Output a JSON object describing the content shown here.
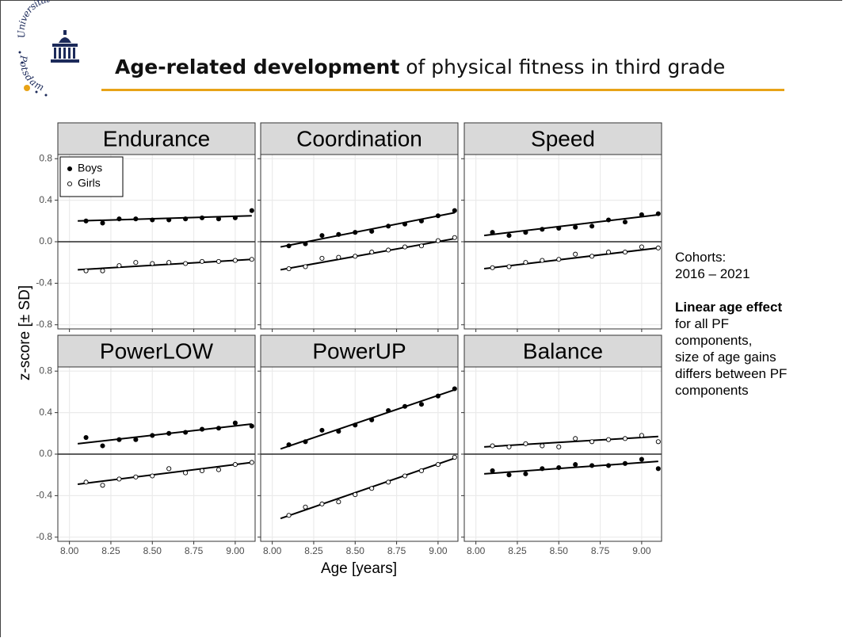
{
  "logo": {
    "top": "Universität",
    "bottom": "Potsdam"
  },
  "header": {
    "title_bold": "Age-related development",
    "title_rest": " of physical fitness in third grade"
  },
  "shared_axes": {
    "ylabel": "z-score [± SD]",
    "xlabel": "Age [years]"
  },
  "notes": {
    "cohorts_label": "Cohorts:",
    "cohorts": "2016 – 2021",
    "effect_bold": "Linear age effect",
    "effect_lines": [
      "for all PF",
      "components,",
      "size of age gains",
      "differs between PF",
      "components"
    ]
  },
  "chart_data": [
    {
      "type": "scatter",
      "title": "Endurance",
      "legend": "top-left",
      "reference_line": 0,
      "xlim": [
        7.93,
        9.12
      ],
      "ylim": [
        -0.84,
        0.84
      ],
      "xticks": [
        {
          "value": 8,
          "label": "8.00"
        },
        8.25,
        {
          "value": 8.5,
          "label": "8.50"
        },
        8.75,
        {
          "value": 9,
          "label": "9.00"
        }
      ],
      "yticks": [
        -0.8,
        -0.4,
        {
          "value": 0,
          "label": "0.0"
        },
        0.4,
        0.8
      ],
      "x": [
        8.1,
        8.2,
        8.3,
        8.4,
        8.5,
        8.6,
        8.7,
        8.8,
        8.9,
        9.0,
        9.1
      ],
      "series": [
        {
          "name": "Boys",
          "color": "#000000",
          "marker": "filled",
          "values": [
            0.2,
            0.18,
            0.22,
            0.22,
            0.21,
            0.21,
            0.22,
            0.23,
            0.22,
            0.23,
            0.3
          ],
          "fit": {
            "x": [
              8.05,
              9.1
            ],
            "values": [
              0.2,
              0.25
            ]
          }
        },
        {
          "name": "Girls",
          "color": "#000000",
          "marker": "open",
          "values": [
            -0.28,
            -0.28,
            -0.23,
            -0.2,
            -0.21,
            -0.2,
            -0.21,
            -0.19,
            -0.19,
            -0.18,
            -0.17
          ],
          "fit": {
            "x": [
              8.05,
              9.1
            ],
            "values": [
              -0.27,
              -0.17
            ]
          }
        }
      ]
    },
    {
      "type": "scatter",
      "title": "Coordination",
      "reference_line": 0,
      "xlim": [
        7.93,
        9.12
      ],
      "ylim": [
        -0.84,
        0.84
      ],
      "xticks": [
        {
          "value": 8,
          "label": "8.00"
        },
        8.25,
        {
          "value": 8.5,
          "label": "8.50"
        },
        8.75,
        {
          "value": 9,
          "label": "9.00"
        }
      ],
      "yticks": [
        -0.8,
        -0.4,
        {
          "value": 0,
          "label": "0.0"
        },
        0.4,
        0.8
      ],
      "x": [
        8.1,
        8.2,
        8.3,
        8.4,
        8.5,
        8.6,
        8.7,
        8.8,
        8.9,
        9.0,
        9.1
      ],
      "series": [
        {
          "name": "Boys",
          "color": "#000000",
          "marker": "filled",
          "values": [
            -0.04,
            -0.02,
            0.06,
            0.07,
            0.09,
            0.1,
            0.15,
            0.17,
            0.2,
            0.25,
            0.3
          ],
          "fit": {
            "x": [
              8.05,
              9.1
            ],
            "values": [
              -0.05,
              0.28
            ]
          }
        },
        {
          "name": "Girls",
          "color": "#000000",
          "marker": "open",
          "values": [
            -0.26,
            -0.24,
            -0.16,
            -0.15,
            -0.14,
            -0.1,
            -0.08,
            -0.05,
            -0.04,
            0.01,
            0.04
          ],
          "fit": {
            "x": [
              8.05,
              9.1
            ],
            "values": [
              -0.27,
              0.03
            ]
          }
        }
      ]
    },
    {
      "type": "scatter",
      "title": "Speed",
      "reference_line": 0,
      "xlim": [
        7.93,
        9.12
      ],
      "ylim": [
        -0.84,
        0.84
      ],
      "xticks": [
        {
          "value": 8,
          "label": "8.00"
        },
        8.25,
        {
          "value": 8.5,
          "label": "8.50"
        },
        8.75,
        {
          "value": 9,
          "label": "9.00"
        }
      ],
      "yticks": [
        -0.8,
        -0.4,
        {
          "value": 0,
          "label": "0.0"
        },
        0.4,
        0.8
      ],
      "x": [
        8.1,
        8.2,
        8.3,
        8.4,
        8.5,
        8.6,
        8.7,
        8.8,
        8.9,
        9.0,
        9.1
      ],
      "series": [
        {
          "name": "Boys",
          "color": "#000000",
          "marker": "filled",
          "values": [
            0.09,
            0.06,
            0.09,
            0.12,
            0.13,
            0.14,
            0.15,
            0.21,
            0.19,
            0.26,
            0.27
          ],
          "fit": {
            "x": [
              8.05,
              9.1
            ],
            "values": [
              0.06,
              0.26
            ]
          }
        },
        {
          "name": "Girls",
          "color": "#000000",
          "marker": "open",
          "values": [
            -0.25,
            -0.24,
            -0.2,
            -0.18,
            -0.17,
            -0.12,
            -0.14,
            -0.1,
            -0.1,
            -0.05,
            -0.06
          ],
          "fit": {
            "x": [
              8.05,
              9.1
            ],
            "values": [
              -0.26,
              -0.06
            ]
          }
        }
      ]
    },
    {
      "type": "scatter",
      "title": "PowerLOW",
      "reference_line": 0,
      "xlim": [
        7.93,
        9.12
      ],
      "ylim": [
        -0.84,
        0.84
      ],
      "xticks": [
        {
          "value": 8,
          "label": "8.00"
        },
        8.25,
        {
          "value": 8.5,
          "label": "8.50"
        },
        8.75,
        {
          "value": 9,
          "label": "9.00"
        }
      ],
      "yticks": [
        -0.8,
        -0.4,
        {
          "value": 0,
          "label": "0.0"
        },
        0.4,
        0.8
      ],
      "x": [
        8.1,
        8.2,
        8.3,
        8.4,
        8.5,
        8.6,
        8.7,
        8.8,
        8.9,
        9.0,
        9.1
      ],
      "series": [
        {
          "name": "Boys",
          "color": "#000000",
          "marker": "filled",
          "values": [
            0.16,
            0.08,
            0.14,
            0.14,
            0.18,
            0.2,
            0.21,
            0.24,
            0.25,
            0.3,
            0.27
          ],
          "fit": {
            "x": [
              8.05,
              9.1
            ],
            "values": [
              0.1,
              0.29
            ]
          }
        },
        {
          "name": "Girls",
          "color": "#000000",
          "marker": "open",
          "values": [
            -0.27,
            -0.3,
            -0.24,
            -0.22,
            -0.21,
            -0.14,
            -0.18,
            -0.16,
            -0.15,
            -0.1,
            -0.08
          ],
          "fit": {
            "x": [
              8.05,
              9.1
            ],
            "values": [
              -0.29,
              -0.08
            ]
          }
        }
      ]
    },
    {
      "type": "scatter",
      "title": "PowerUP",
      "reference_line": 0,
      "xlim": [
        7.93,
        9.12
      ],
      "ylim": [
        -0.84,
        0.84
      ],
      "xticks": [
        {
          "value": 8,
          "label": "8.00"
        },
        8.25,
        {
          "value": 8.5,
          "label": "8.50"
        },
        8.75,
        {
          "value": 9,
          "label": "9.00"
        }
      ],
      "yticks": [
        -0.8,
        -0.4,
        {
          "value": 0,
          "label": "0.0"
        },
        0.4,
        0.8
      ],
      "x": [
        8.1,
        8.2,
        8.3,
        8.4,
        8.5,
        8.6,
        8.7,
        8.8,
        8.9,
        9.0,
        9.1
      ],
      "series": [
        {
          "name": "Boys",
          "color": "#000000",
          "marker": "filled",
          "values": [
            0.09,
            0.12,
            0.23,
            0.22,
            0.28,
            0.33,
            0.42,
            0.46,
            0.48,
            0.56,
            0.63
          ],
          "fit": {
            "x": [
              8.05,
              9.1
            ],
            "values": [
              0.05,
              0.62
            ]
          }
        },
        {
          "name": "Girls",
          "color": "#000000",
          "marker": "open",
          "values": [
            -0.59,
            -0.51,
            -0.48,
            -0.46,
            -0.39,
            -0.33,
            -0.27,
            -0.21,
            -0.16,
            -0.1,
            -0.03
          ],
          "fit": {
            "x": [
              8.05,
              9.1
            ],
            "values": [
              -0.62,
              -0.04
            ]
          }
        }
      ]
    },
    {
      "type": "scatter",
      "title": "Balance",
      "reference_line": 0,
      "xlim": [
        7.93,
        9.12
      ],
      "ylim": [
        -0.84,
        0.84
      ],
      "xticks": [
        {
          "value": 8,
          "label": "8.00"
        },
        8.25,
        {
          "value": 8.5,
          "label": "8.50"
        },
        8.75,
        {
          "value": 9,
          "label": "9.00"
        }
      ],
      "yticks": [
        -0.8,
        -0.4,
        {
          "value": 0,
          "label": "0.0"
        },
        0.4,
        0.8
      ],
      "x": [
        8.1,
        8.2,
        8.3,
        8.4,
        8.5,
        8.6,
        8.7,
        8.8,
        8.9,
        9.0,
        9.1
      ],
      "series": [
        {
          "name": "Boys",
          "color": "#000000",
          "marker": "filled",
          "values": [
            -0.16,
            -0.2,
            -0.19,
            -0.14,
            -0.13,
            -0.1,
            -0.11,
            -0.11,
            -0.09,
            -0.05,
            -0.14
          ],
          "fit": {
            "x": [
              8.05,
              9.1
            ],
            "values": [
              -0.19,
              -0.07
            ]
          }
        },
        {
          "name": "Girls",
          "color": "#000000",
          "marker": "open",
          "values": [
            0.08,
            0.07,
            0.1,
            0.08,
            0.07,
            0.15,
            0.12,
            0.14,
            0.15,
            0.18,
            0.12
          ],
          "fit": {
            "x": [
              8.05,
              9.1
            ],
            "values": [
              0.07,
              0.17
            ]
          }
        }
      ]
    }
  ]
}
